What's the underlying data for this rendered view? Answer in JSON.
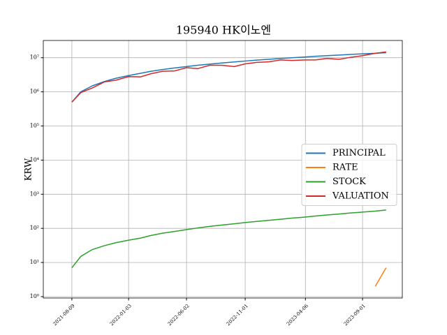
{
  "chart_data": {
    "type": "line",
    "title": "195940 HK이노엔",
    "y_label": "KRW",
    "log_y": true,
    "grid": true,
    "legend": "center right",
    "x": [
      "2021-08-09",
      "2021-09-01",
      "2021-10-01",
      "2021-11-01",
      "2021-12-01",
      "2022-01-03",
      "2022-02-03",
      "2022-03-02",
      "2022-04-01",
      "2022-05-02",
      "2022-06-02",
      "2022-07-01",
      "2022-08-01",
      "2022-09-01",
      "2022-10-04",
      "2022-11-01",
      "2022-12-01",
      "2023-01-02",
      "2023-02-01",
      "2023-03-02",
      "2023-04-06",
      "2023-05-02",
      "2023-06-01",
      "2023-07-03",
      "2023-08-01",
      "2023-09-01",
      "2023-10-04",
      "2023-11-01"
    ],
    "xlim": [
      "2021-05-27",
      "2023-12-13"
    ],
    "xticks": [
      "2021-08-09",
      "2022-01-03",
      "2022-06-02",
      "2022-11-01",
      "2023-04-06",
      "2023-09-01"
    ],
    "ylim": [
      0.91,
      32000000
    ],
    "yticks": [
      {
        "value": 1,
        "label": "10⁰"
      },
      {
        "value": 10,
        "label": "10¹"
      },
      {
        "value": 100,
        "label": "10²"
      },
      {
        "value": 1000,
        "label": "10³"
      },
      {
        "value": 10000,
        "label": "10⁴"
      },
      {
        "value": 100000,
        "label": "10⁵"
      },
      {
        "value": 1000000,
        "label": "10⁶"
      },
      {
        "value": 10000000,
        "label": "10⁷"
      }
    ],
    "series": [
      {
        "name": "PRINCIPAL",
        "color": "#1f77b4",
        "values": [
          500000,
          1000000,
          1500000,
          2000000,
          2500000,
          3000000,
          3500000,
          4000000,
          4500000,
          5000000,
          5500000,
          6000000,
          6500000,
          7000000,
          7500000,
          8000000,
          8500000,
          9000000,
          9500000,
          10000000,
          10500000,
          11000000,
          11500000,
          12000000,
          12500000,
          13000000,
          13500000,
          14000000
        ]
      },
      {
        "name": "RATE",
        "color": "#ff7f0e",
        "values": [
          null,
          null,
          null,
          null,
          null,
          null,
          null,
          null,
          null,
          null,
          null,
          null,
          null,
          null,
          null,
          null,
          null,
          null,
          null,
          null,
          null,
          null,
          null,
          null,
          null,
          null,
          2,
          7
        ]
      },
      {
        "name": "STOCK",
        "color": "#2ca02c",
        "values": [
          7,
          15,
          24,
          31,
          38,
          45,
          52,
          62,
          72,
          81,
          92,
          103,
          114,
          125,
          136,
          148,
          160,
          172,
          185,
          200,
          215,
          230,
          247,
          264,
          282,
          300,
          320,
          345
        ]
      },
      {
        "name": "VALUATION",
        "color": "#d62728",
        "values": [
          500000,
          950000,
          1300000,
          1950000,
          2200000,
          2800000,
          2750000,
          3400000,
          4000000,
          4100000,
          5100000,
          4800000,
          6000000,
          6000000,
          5500000,
          6600000,
          7300000,
          7600000,
          8600000,
          8300000,
          8600000,
          8600000,
          9500000,
          9000000,
          10300000,
          11500000,
          13500000,
          14800000
        ]
      }
    ]
  }
}
